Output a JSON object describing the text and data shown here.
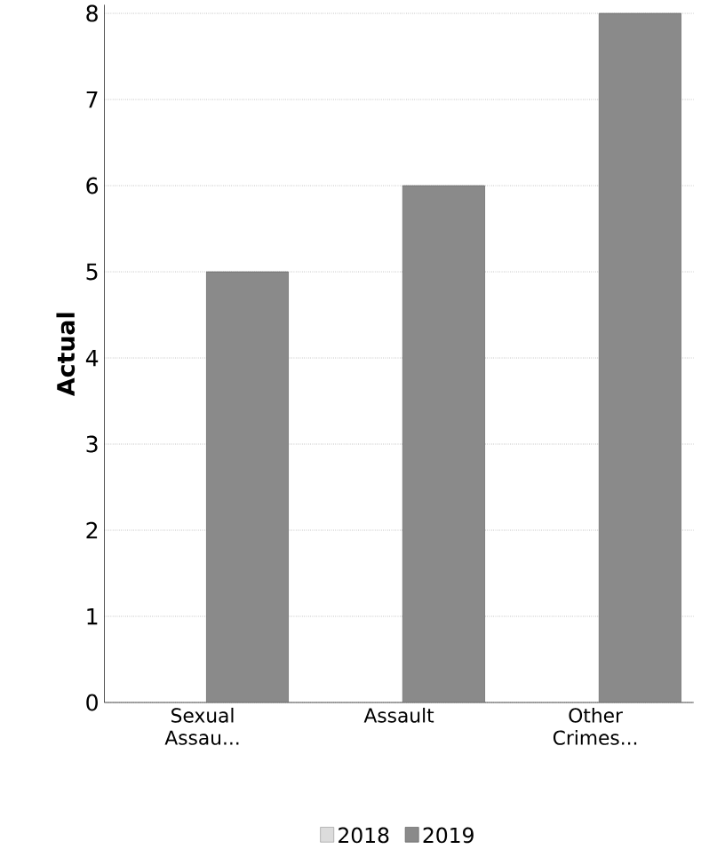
{
  "chart_data": {
    "type": "bar",
    "categories": [
      "Sexual Assau...",
      "Assault",
      "Other Crimes..."
    ],
    "series": [
      {
        "name": "2018",
        "color": "#dcdcdc",
        "values": [
          null,
          null,
          null
        ]
      },
      {
        "name": "2019",
        "color": "#8a8a8a",
        "values": [
          5,
          6,
          8
        ]
      }
    ],
    "ylabel": "Actual",
    "ylim": [
      0,
      8.1
    ],
    "yticks": [
      0,
      1,
      2,
      3,
      4,
      5,
      6,
      7,
      8
    ],
    "grid": "y",
    "legend": "bottom"
  }
}
